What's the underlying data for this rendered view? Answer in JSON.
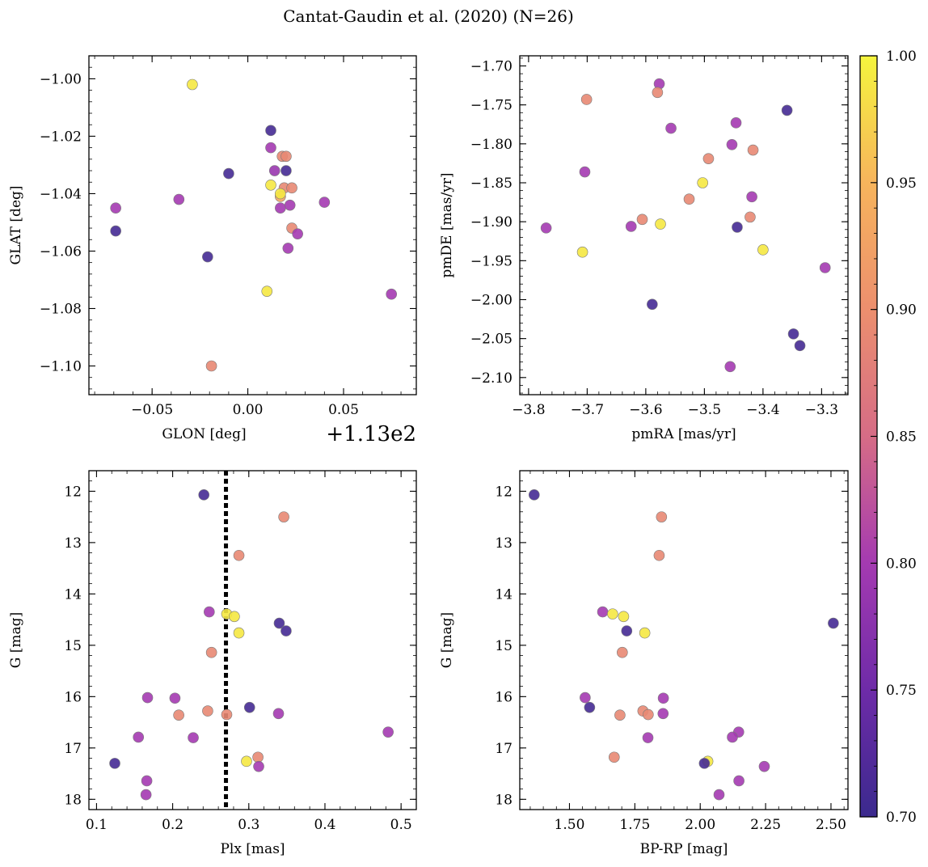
{
  "chart_data": {
    "type": "scatter",
    "title": "Cantat-Gaudin et al. (2020) (N=26)",
    "colorbar": {
      "cmap": "plasma",
      "range": [
        0.7,
        1.0
      ],
      "ticks": [
        "0.70",
        "0.75",
        "0.80",
        "0.85",
        "0.90",
        "0.95",
        "1.00"
      ],
      "tick_values": [
        0.7,
        0.75,
        0.8,
        0.85,
        0.9,
        0.95,
        1.0
      ]
    },
    "panels": [
      {
        "name": "panel-glon-glat",
        "xlabel": "GLON [deg]",
        "ylabel": "GLAT [deg]",
        "offset_text": "+1.13e2",
        "xlim": [
          -0.083,
          0.088
        ],
        "ylim": [
          -1.11,
          -0.992
        ],
        "invert_y": false,
        "xticks": [
          -0.05,
          0.0,
          0.05
        ],
        "xtick_labels": [
          "−0.05",
          "0.00",
          "0.05"
        ],
        "yticks": [
          -1.1,
          -1.08,
          -1.06,
          -1.04,
          -1.02,
          -1.0
        ],
        "ytick_labels": [
          "−1.10",
          "−1.08",
          "−1.06",
          "−1.04",
          "−1.02",
          "−1.00"
        ],
        "points": [
          {
            "x": -0.029,
            "y": -1.002,
            "c": 0.99
          },
          {
            "x": 0.012,
            "y": -1.018,
            "c": 0.71
          },
          {
            "x": 0.012,
            "y": -1.024,
            "c": 0.8
          },
          {
            "x": 0.018,
            "y": -1.027,
            "c": 0.89
          },
          {
            "x": 0.02,
            "y": -1.027,
            "c": 0.89
          },
          {
            "x": 0.02,
            "y": -1.032,
            "c": 0.71
          },
          {
            "x": 0.014,
            "y": -1.032,
            "c": 0.79
          },
          {
            "x": -0.01,
            "y": -1.033,
            "c": 0.71
          },
          {
            "x": 0.012,
            "y": -1.037,
            "c": 0.99
          },
          {
            "x": 0.019,
            "y": -1.038,
            "c": 0.89
          },
          {
            "x": 0.023,
            "y": -1.038,
            "c": 0.89
          },
          {
            "x": 0.017,
            "y": -1.041,
            "c": 0.93
          },
          {
            "x": 0.017,
            "y": -1.04,
            "c": 0.99
          },
          {
            "x": -0.036,
            "y": -1.042,
            "c": 0.8
          },
          {
            "x": 0.04,
            "y": -1.043,
            "c": 0.8
          },
          {
            "x": 0.022,
            "y": -1.044,
            "c": 0.8
          },
          {
            "x": 0.017,
            "y": -1.045,
            "c": 0.8
          },
          {
            "x": -0.069,
            "y": -1.045,
            "c": 0.8
          },
          {
            "x": 0.023,
            "y": -1.052,
            "c": 0.89
          },
          {
            "x": -0.069,
            "y": -1.053,
            "c": 0.71
          },
          {
            "x": 0.026,
            "y": -1.054,
            "c": 0.8
          },
          {
            "x": 0.021,
            "y": -1.059,
            "c": 0.8
          },
          {
            "x": -0.021,
            "y": -1.062,
            "c": 0.71
          },
          {
            "x": 0.01,
            "y": -1.074,
            "c": 0.99
          },
          {
            "x": 0.075,
            "y": -1.075,
            "c": 0.8
          },
          {
            "x": -0.019,
            "y": -1.1,
            "c": 0.89
          }
        ]
      },
      {
        "name": "panel-pm",
        "xlabel": "pmRA [mas/yr]",
        "ylabel": "pmDE [mas/yr]",
        "xlim": [
          -3.815,
          -3.255
        ],
        "ylim": [
          -2.122,
          -1.687
        ],
        "invert_y": false,
        "xticks": [
          -3.8,
          -3.7,
          -3.6,
          -3.5,
          -3.4,
          -3.3
        ],
        "xtick_labels": [
          "−3.8",
          "−3.7",
          "−3.6",
          "−3.5",
          "−3.4",
          "−3.3"
        ],
        "yticks": [
          -2.1,
          -2.05,
          -2.0,
          -1.95,
          -1.9,
          -1.85,
          -1.8,
          -1.75,
          -1.7
        ],
        "ytick_labels": [
          "−2.10",
          "−2.05",
          "−2.00",
          "−1.95",
          "−1.90",
          "−1.85",
          "−1.80",
          "−1.75",
          "−1.70"
        ],
        "points": [
          {
            "x": -3.577,
            "y": -1.723,
            "c": 0.8
          },
          {
            "x": -3.58,
            "y": -1.734,
            "c": 0.89
          },
          {
            "x": -3.701,
            "y": -1.743,
            "c": 0.89
          },
          {
            "x": -3.359,
            "y": -1.757,
            "c": 0.71
          },
          {
            "x": -3.446,
            "y": -1.773,
            "c": 0.8
          },
          {
            "x": -3.557,
            "y": -1.78,
            "c": 0.8
          },
          {
            "x": -3.453,
            "y": -1.801,
            "c": 0.8
          },
          {
            "x": -3.417,
            "y": -1.808,
            "c": 0.89
          },
          {
            "x": -3.493,
            "y": -1.819,
            "c": 0.89
          },
          {
            "x": -3.704,
            "y": -1.836,
            "c": 0.8
          },
          {
            "x": -3.503,
            "y": -1.85,
            "c": 0.99
          },
          {
            "x": -3.419,
            "y": -1.868,
            "c": 0.8
          },
          {
            "x": -3.526,
            "y": -1.871,
            "c": 0.89
          },
          {
            "x": -3.422,
            "y": -1.894,
            "c": 0.89
          },
          {
            "x": -3.606,
            "y": -1.897,
            "c": 0.89
          },
          {
            "x": -3.575,
            "y": -1.903,
            "c": 0.99
          },
          {
            "x": -3.625,
            "y": -1.906,
            "c": 0.8
          },
          {
            "x": -3.444,
            "y": -1.907,
            "c": 0.71
          },
          {
            "x": -3.77,
            "y": -1.908,
            "c": 0.8
          },
          {
            "x": -3.4,
            "y": -1.936,
            "c": 0.99
          },
          {
            "x": -3.708,
            "y": -1.939,
            "c": 0.99
          },
          {
            "x": -3.294,
            "y": -1.959,
            "c": 0.8
          },
          {
            "x": -3.589,
            "y": -2.006,
            "c": 0.71
          },
          {
            "x": -3.348,
            "y": -2.044,
            "c": 0.71
          },
          {
            "x": -3.337,
            "y": -2.059,
            "c": 0.71
          },
          {
            "x": -3.456,
            "y": -2.086,
            "c": 0.8
          }
        ]
      },
      {
        "name": "panel-plx-g",
        "xlabel": "Plx [mas]",
        "ylabel": "G [mag]",
        "xlim": [
          0.09,
          0.52
        ],
        "ylim": [
          11.6,
          18.2
        ],
        "invert_y": true,
        "xticks": [
          0.1,
          0.2,
          0.3,
          0.4,
          0.5
        ],
        "xtick_labels": [
          "0.1",
          "0.2",
          "0.3",
          "0.4",
          "0.5"
        ],
        "yticks": [
          12,
          13,
          14,
          15,
          16,
          17,
          18
        ],
        "ytick_labels": [
          "12",
          "13",
          "14",
          "15",
          "16",
          "17",
          "18"
        ],
        "vline": 0.27,
        "points": [
          {
            "x": 0.241,
            "y": 12.07,
            "c": 0.71
          },
          {
            "x": 0.346,
            "y": 12.5,
            "c": 0.89
          },
          {
            "x": 0.287,
            "y": 13.25,
            "c": 0.89
          },
          {
            "x": 0.248,
            "y": 14.35,
            "c": 0.8
          },
          {
            "x": 0.271,
            "y": 14.39,
            "c": 0.99
          },
          {
            "x": 0.281,
            "y": 14.44,
            "c": 0.99
          },
          {
            "x": 0.34,
            "y": 14.57,
            "c": 0.71
          },
          {
            "x": 0.349,
            "y": 14.72,
            "c": 0.71
          },
          {
            "x": 0.287,
            "y": 14.76,
            "c": 0.99
          },
          {
            "x": 0.251,
            "y": 15.14,
            "c": 0.89
          },
          {
            "x": 0.167,
            "y": 16.02,
            "c": 0.8
          },
          {
            "x": 0.203,
            "y": 16.03,
            "c": 0.8
          },
          {
            "x": 0.301,
            "y": 16.21,
            "c": 0.71
          },
          {
            "x": 0.246,
            "y": 16.28,
            "c": 0.89
          },
          {
            "x": 0.339,
            "y": 16.33,
            "c": 0.8
          },
          {
            "x": 0.208,
            "y": 16.36,
            "c": 0.89
          },
          {
            "x": 0.271,
            "y": 16.35,
            "c": 0.89
          },
          {
            "x": 0.483,
            "y": 16.69,
            "c": 0.8
          },
          {
            "x": 0.155,
            "y": 16.79,
            "c": 0.8
          },
          {
            "x": 0.227,
            "y": 16.8,
            "c": 0.8
          },
          {
            "x": 0.312,
            "y": 17.18,
            "c": 0.89
          },
          {
            "x": 0.297,
            "y": 17.26,
            "c": 0.99
          },
          {
            "x": 0.124,
            "y": 17.3,
            "c": 0.71
          },
          {
            "x": 0.313,
            "y": 17.36,
            "c": 0.8
          },
          {
            "x": 0.166,
            "y": 17.64,
            "c": 0.8
          },
          {
            "x": 0.165,
            "y": 17.91,
            "c": 0.8
          }
        ]
      },
      {
        "name": "panel-color-mag",
        "xlabel": "BP-RP [mag]",
        "ylabel": "G [mag]",
        "xlim": [
          1.31,
          2.565
        ],
        "ylim": [
          11.6,
          18.2
        ],
        "invert_y": true,
        "xticks": [
          1.5,
          1.75,
          2.0,
          2.25,
          2.5
        ],
        "xtick_labels": [
          "1.50",
          "1.75",
          "2.00",
          "2.25",
          "2.50"
        ],
        "yticks": [
          12,
          13,
          14,
          15,
          16,
          17,
          18
        ],
        "ytick_labels": [
          "12",
          "13",
          "14",
          "15",
          "16",
          "17",
          "18"
        ],
        "points": [
          {
            "x": 1.365,
            "y": 12.07,
            "c": 0.71
          },
          {
            "x": 1.852,
            "y": 12.5,
            "c": 0.89
          },
          {
            "x": 1.843,
            "y": 13.25,
            "c": 0.89
          },
          {
            "x": 1.627,
            "y": 14.35,
            "c": 0.8
          },
          {
            "x": 1.665,
            "y": 14.39,
            "c": 0.99
          },
          {
            "x": 1.707,
            "y": 14.44,
            "c": 0.99
          },
          {
            "x": 2.509,
            "y": 14.57,
            "c": 0.71
          },
          {
            "x": 1.719,
            "y": 14.72,
            "c": 0.71
          },
          {
            "x": 1.788,
            "y": 14.76,
            "c": 0.99
          },
          {
            "x": 1.702,
            "y": 15.14,
            "c": 0.89
          },
          {
            "x": 1.56,
            "y": 16.02,
            "c": 0.8
          },
          {
            "x": 1.859,
            "y": 16.03,
            "c": 0.8
          },
          {
            "x": 1.577,
            "y": 16.21,
            "c": 0.71
          },
          {
            "x": 1.781,
            "y": 16.28,
            "c": 0.89
          },
          {
            "x": 1.858,
            "y": 16.33,
            "c": 0.8
          },
          {
            "x": 1.693,
            "y": 16.36,
            "c": 0.89
          },
          {
            "x": 1.801,
            "y": 16.35,
            "c": 0.89
          },
          {
            "x": 2.147,
            "y": 16.69,
            "c": 0.8
          },
          {
            "x": 2.123,
            "y": 16.79,
            "c": 0.8
          },
          {
            "x": 1.8,
            "y": 16.8,
            "c": 0.8
          },
          {
            "x": 1.671,
            "y": 17.18,
            "c": 0.89
          },
          {
            "x": 2.029,
            "y": 17.26,
            "c": 0.99
          },
          {
            "x": 2.016,
            "y": 17.3,
            "c": 0.71
          },
          {
            "x": 2.245,
            "y": 17.36,
            "c": 0.8
          },
          {
            "x": 2.148,
            "y": 17.64,
            "c": 0.8
          },
          {
            "x": 2.072,
            "y": 17.91,
            "c": 0.8
          }
        ]
      }
    ]
  }
}
